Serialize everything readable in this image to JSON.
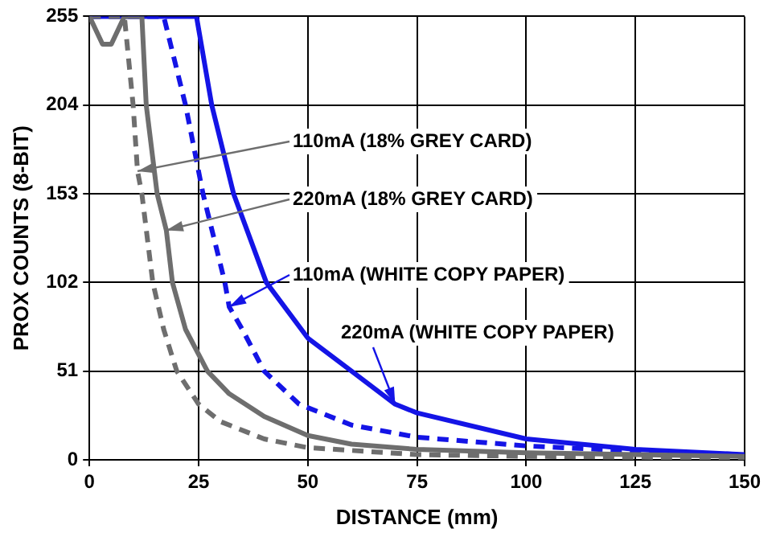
{
  "chart_data": {
    "type": "line",
    "xlabel": "DISTANCE (mm)",
    "ylabel": "PROX COUNTS (8-BIT)",
    "xlim": [
      0,
      150
    ],
    "xticks": [
      0,
      25,
      50,
      75,
      100,
      125,
      150
    ],
    "ylim": [
      0,
      255
    ],
    "yticks": [
      0,
      51,
      102,
      153,
      204,
      255
    ],
    "grid": true,
    "marker": "none",
    "series": [
      {
        "color": "#6e6e6e",
        "line_style": "dashed",
        "x": [
          0,
          8,
          10,
          11,
          12,
          14.5,
          17,
          20,
          25,
          30,
          40,
          50,
          75,
          100,
          150
        ],
        "values": [
          255,
          255,
          204,
          166,
          153,
          102,
          75,
          51,
          32,
          22,
          12,
          7,
          3,
          2,
          1
        ]
      },
      {
        "color": "#6e6e6e",
        "line_style": "solid",
        "x": [
          0,
          3,
          5,
          8,
          12,
          13,
          15.5,
          17.6,
          19,
          22,
          27,
          32,
          40,
          50,
          60,
          75,
          100,
          125,
          150
        ],
        "values": [
          255,
          239,
          239,
          255,
          255,
          204,
          153,
          132,
          102,
          75,
          51,
          38,
          25,
          14,
          9,
          6,
          4,
          3,
          2
        ]
      },
      {
        "color": "#1414e6",
        "line_style": "dashed",
        "x": [
          0,
          17,
          22,
          26,
          31,
          32,
          35,
          40,
          48,
          60,
          75,
          100,
          125,
          150
        ],
        "values": [
          255,
          255,
          204,
          153,
          102,
          88,
          75,
          51,
          32,
          20,
          13,
          8,
          5,
          3
        ]
      },
      {
        "color": "#1414e6",
        "line_style": "solid",
        "x": [
          0,
          24.5,
          28,
          33,
          40.5,
          50,
          60,
          70,
          75,
          100,
          125,
          150
        ],
        "values": [
          255,
          255,
          204,
          153,
          102,
          70,
          51,
          32,
          27,
          12,
          6,
          3
        ]
      }
    ],
    "annotations": [
      {
        "text": "110mA (18% GREY CARD)",
        "x": 11,
        "y": 166
      },
      {
        "text": "220mA (18% GREY CARD)",
        "x": 17.6,
        "y": 132
      },
      {
        "text": "110mA (WHITE COPY PAPER)",
        "x": 32,
        "y": 88
      },
      {
        "text": "220mA (WHITE COPY PAPER)",
        "x": 70,
        "y": 32
      }
    ]
  }
}
